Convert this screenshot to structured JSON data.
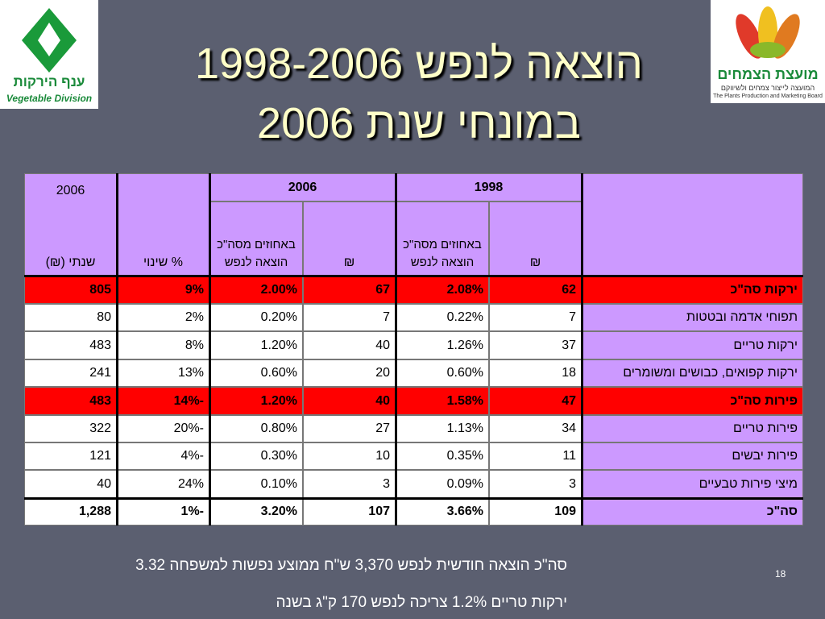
{
  "header": {
    "title_line1": "הוצאה לנפש 1998-2006",
    "title_line2": "במונחי שנת 2006",
    "left_logo": {
      "hebrew": "ענף הירקות",
      "english": "Vegetable Division"
    },
    "right_logo": {
      "hebrew": "מועצת הצמחים",
      "subtitle": "המועצה לייצור צמחים ולשיווקם",
      "english": "The Plants Production and Marketing Board"
    }
  },
  "table": {
    "header": {
      "annual_year": "2006",
      "annual_label": "שנתי (₪)",
      "change_label": "% שינוי",
      "year_2006": "2006",
      "year_1998": "1998",
      "percent_label": "באחוזים מסה\"כ הוצאה לנפש",
      "percent_label_1998": "באחוזים מסה\"כ הוצאה לנפש",
      "shekel_2006": "₪",
      "shekel_1998": "₪"
    },
    "rows": [
      {
        "emphasis": "red",
        "cells": [
          "ירקות סה\"כ",
          "62",
          "2.08%",
          "67",
          "2.00%",
          "9%",
          "805"
        ]
      },
      {
        "cells": [
          "תפוחי אדמה ובטטות",
          "7",
          "0.22%",
          "7",
          "0.20%",
          "2%",
          "80"
        ]
      },
      {
        "cells": [
          "ירקות טריים",
          "37",
          "1.26%",
          "40",
          "1.20%",
          "8%",
          "483"
        ]
      },
      {
        "cells": [
          "ירקות קפואים, כבושים ומשומרים",
          "18",
          "0.60%",
          "20",
          "0.60%",
          "13%",
          "241"
        ]
      },
      {
        "emphasis": "red",
        "cells": [
          "פירות סה\"כ",
          "47",
          "1.58%",
          "40",
          "1.20%",
          "-14%",
          "483"
        ]
      },
      {
        "cells": [
          "פירות טריים",
          "34",
          "1.13%",
          "27",
          "0.80%",
          "-20%",
          "322"
        ]
      },
      {
        "cells": [
          "פירות יבשים",
          "11",
          "0.35%",
          "10",
          "0.30%",
          "-4%",
          "121"
        ]
      },
      {
        "cells": [
          "מיצי פירות טבעיים",
          "3",
          "0.09%",
          "3",
          "0.10%",
          "24%",
          "40"
        ]
      },
      {
        "emphasis": "total",
        "cells": [
          "סה\"כ",
          "109",
          "3.66%",
          "107",
          "3.20%",
          "-1%",
          "1,288"
        ]
      }
    ]
  },
  "footer": {
    "line1": "סה\"כ הוצאה חודשית לנפש 3,370 ש\"ח  ממוצע נפשות למשפחה 3.32",
    "line2": "ירקות  טריים 1.2% צריכה לנפש 170 ק\"ג בשנה",
    "page_number": "18"
  }
}
